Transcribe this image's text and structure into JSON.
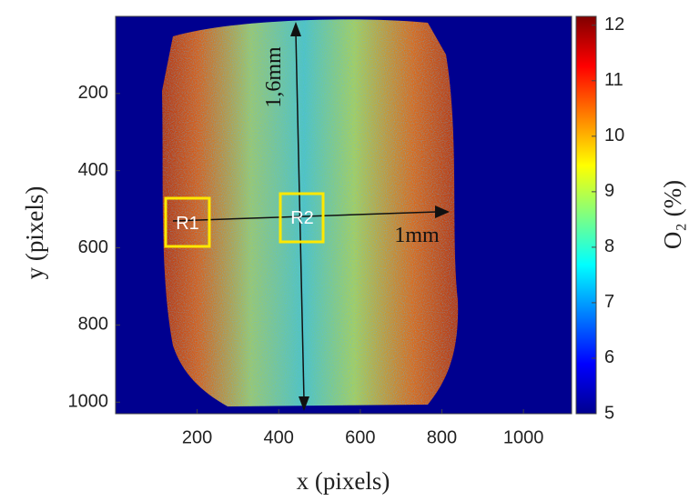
{
  "chart_data": {
    "type": "heatmap",
    "x_label": "x (pixels)",
    "y_label": "y (pixels)",
    "xlim": [
      0,
      1118
    ],
    "xticks": [
      200,
      400,
      600,
      800,
      1000
    ],
    "ylim": [
      0,
      1030
    ],
    "yticks": [
      200,
      400,
      600,
      800,
      1000
    ],
    "y_reversed": true,
    "colormap": "jet",
    "colorbar_label": "O₂ (%)",
    "clim": [
      5,
      12.16
    ],
    "colorbar_ticks": [
      5,
      6,
      7,
      8,
      9,
      10,
      11,
      12
    ],
    "annotations": [
      "1,6mm",
      "1mm",
      "R1",
      "R2"
    ]
  }
}
